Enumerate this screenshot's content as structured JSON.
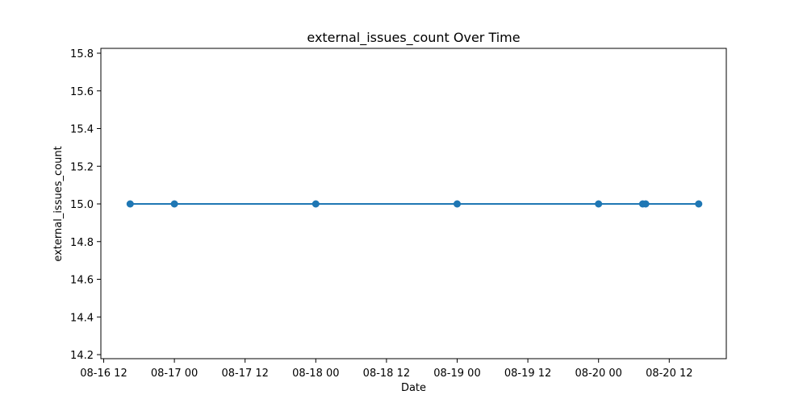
{
  "chart_data": {
    "type": "line",
    "title": "external_issues_count Over Time",
    "xlabel": "Date",
    "ylabel": "external_issues_count",
    "x_tick_labels": [
      "08-16 12",
      "08-17 00",
      "08-17 12",
      "08-18 00",
      "08-18 12",
      "08-19 00",
      "08-19 12",
      "08-20 00",
      "08-20 12"
    ],
    "y_tick_labels": [
      "14.2",
      "14.4",
      "14.6",
      "14.8",
      "15.0",
      "15.2",
      "15.4",
      "15.6",
      "15.8"
    ],
    "series": [
      {
        "x": [
          "2024-08-16 16:30",
          "2024-08-17 00:00",
          "2024-08-18 00:00",
          "2024-08-19 00:00",
          "2024-08-20 00:00",
          "2024-08-20 07:30",
          "2024-08-20 08:00",
          "2024-08-20 17:00"
        ],
        "values": [
          15,
          15,
          15,
          15,
          15,
          15,
          15,
          15
        ]
      }
    ],
    "xlim": [
      "2024-08-16 12:00",
      "2024-08-20 12:00"
    ],
    "ylim": [
      14.2,
      15.8
    ],
    "grid": false,
    "legend": "none",
    "colors": {
      "line": "#1f77b4",
      "marker": "#1f77b4",
      "axes": "#000000"
    }
  }
}
